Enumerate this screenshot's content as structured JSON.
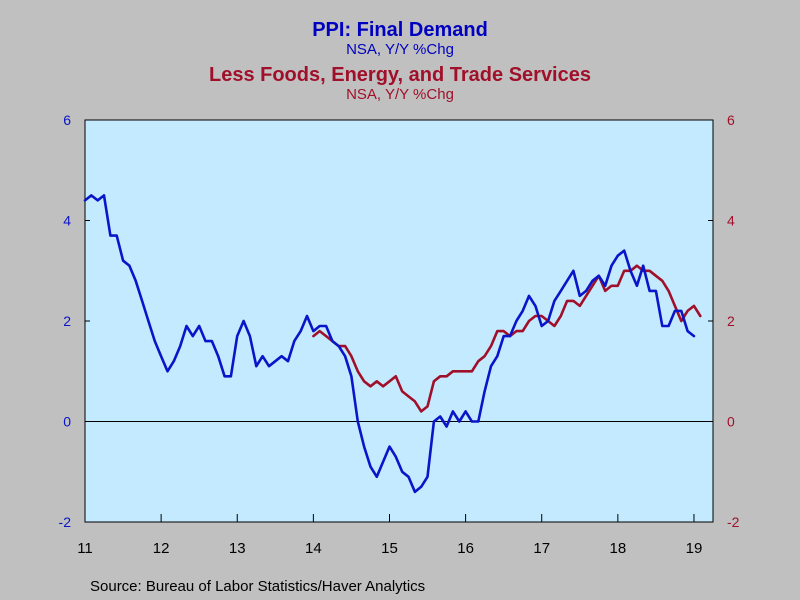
{
  "titles": {
    "line1": "PPI: Final Demand",
    "line1_sub": "NSA, Y/Y %Chg",
    "line2": "Less Foods, Energy, and Trade Services",
    "line2_sub": "NSA, Y/Y %Chg"
  },
  "source": "Source:  Bureau of Labor Statistics/Haver Analytics",
  "chart_data": {
    "type": "line",
    "x_start": "2011-01",
    "x_end": "2019-04",
    "x_ticks": [
      "11",
      "12",
      "13",
      "14",
      "15",
      "16",
      "17",
      "18",
      "19"
    ],
    "ylim": [
      -2,
      6
    ],
    "y_ticks_left": [
      "-2",
      "0",
      "2",
      "4",
      "6"
    ],
    "y_ticks_right": [
      "-2",
      "0",
      "2",
      "4",
      "6"
    ],
    "zero_line": true,
    "grid": false,
    "colors": {
      "background": "#c0c0c0",
      "plot": "#c4eaff",
      "series1": "#0a14c8",
      "series2": "#a0102a"
    },
    "series": [
      {
        "name": "PPI: Final Demand",
        "axis": "left",
        "start": "2011-01",
        "values": [
          4.4,
          4.5,
          4.4,
          4.5,
          3.7,
          3.7,
          3.2,
          3.1,
          2.8,
          2.4,
          2.0,
          1.6,
          1.3,
          1.0,
          1.2,
          1.5,
          1.9,
          1.7,
          1.9,
          1.6,
          1.6,
          1.3,
          0.9,
          0.9,
          1.7,
          2.0,
          1.7,
          1.1,
          1.3,
          1.1,
          1.2,
          1.3,
          1.2,
          1.6,
          1.8,
          2.1,
          1.8,
          1.9,
          1.9,
          1.6,
          1.5,
          1.3,
          0.9,
          0.0,
          -0.5,
          -0.9,
          -1.1,
          -0.8,
          -0.5,
          -0.7,
          -1.0,
          -1.1,
          -1.4,
          -1.3,
          -1.1,
          0.0,
          0.1,
          -0.1,
          0.2,
          0.0,
          0.2,
          0.0,
          0.0,
          0.6,
          1.1,
          1.3,
          1.7,
          1.7,
          2.0,
          2.2,
          2.5,
          2.3,
          1.9,
          2.0,
          2.4,
          2.6,
          2.8,
          3.0,
          2.5,
          2.6,
          2.8,
          2.9,
          2.7,
          3.1,
          3.3,
          3.4,
          3.0,
          2.7,
          3.1,
          2.6,
          2.6,
          1.9,
          1.9,
          2.2,
          2.2,
          1.8,
          1.7
        ]
      },
      {
        "name": "Less Foods, Energy, and Trade Services",
        "axis": "right",
        "start": "2014-01",
        "values": [
          1.7,
          1.8,
          1.7,
          1.6,
          1.5,
          1.5,
          1.3,
          1.0,
          0.8,
          0.7,
          0.8,
          0.7,
          0.8,
          0.9,
          0.6,
          0.5,
          0.4,
          0.2,
          0.3,
          0.8,
          0.9,
          0.9,
          1.0,
          1.0,
          1.0,
          1.0,
          1.2,
          1.3,
          1.5,
          1.8,
          1.8,
          1.7,
          1.8,
          1.8,
          2.0,
          2.1,
          2.1,
          2.0,
          1.9,
          2.1,
          2.4,
          2.4,
          2.3,
          2.5,
          2.7,
          2.9,
          2.6,
          2.7,
          2.7,
          3.0,
          3.0,
          3.1,
          3.0,
          3.0,
          2.9,
          2.8,
          2.6,
          2.3,
          2.0,
          2.2,
          2.3,
          2.1
        ]
      }
    ]
  }
}
